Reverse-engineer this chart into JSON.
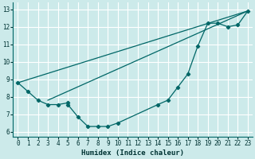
{
  "xlabel": "Humidex (Indice chaleur)",
  "bg_color": "#cceaea",
  "grid_color": "#ffffff",
  "line_color": "#006666",
  "xlim": [
    -0.5,
    23.5
  ],
  "ylim": [
    5.7,
    13.4
  ],
  "xticks": [
    0,
    1,
    2,
    3,
    4,
    5,
    6,
    7,
    8,
    9,
    10,
    11,
    12,
    13,
    14,
    15,
    16,
    17,
    18,
    19,
    20,
    21,
    22,
    23
  ],
  "yticks": [
    6,
    7,
    8,
    9,
    10,
    11,
    12,
    13
  ],
  "line1_x": [
    0,
    1,
    2,
    3,
    4,
    5,
    5,
    6,
    7,
    8,
    9,
    10,
    14,
    15,
    16,
    17,
    18,
    19,
    20,
    21,
    22,
    23
  ],
  "line1_y": [
    8.8,
    8.3,
    7.8,
    7.55,
    7.55,
    7.65,
    7.55,
    6.85,
    6.3,
    6.3,
    6.3,
    6.5,
    7.55,
    7.8,
    8.55,
    9.3,
    10.9,
    12.2,
    12.2,
    12.0,
    12.1,
    12.9
  ],
  "line2_x": [
    0,
    23
  ],
  "line2_y": [
    8.8,
    12.9
  ],
  "line3_x": [
    3,
    23
  ],
  "line3_y": [
    7.8,
    12.9
  ]
}
